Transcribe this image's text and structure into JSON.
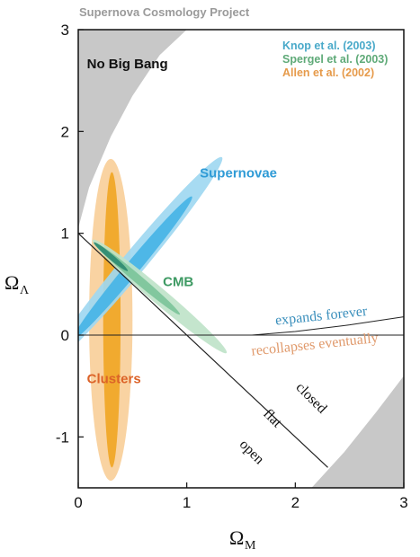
{
  "chart_data": {
    "type": "scatter",
    "title": "Supernova Cosmology Project",
    "xlabel": "Ω",
    "xlabel_sub": "M",
    "ylabel": "Ω",
    "ylabel_sub": "Λ",
    "xlim": [
      0,
      3
    ],
    "ylim": [
      -1.5,
      3
    ],
    "xticks": [
      {
        "value": 0,
        "label": "0"
      },
      {
        "value": 1,
        "label": "1"
      },
      {
        "value": 2,
        "label": "2"
      },
      {
        "value": 3,
        "label": "3"
      }
    ],
    "yticks": [
      {
        "value": 3,
        "label": "3"
      },
      {
        "value": 2,
        "label": "2"
      },
      {
        "value": 1,
        "label": "1"
      },
      {
        "value": 0,
        "label": "0"
      },
      {
        "value": -1,
        "label": "-1"
      }
    ],
    "legend": {
      "placement": "top-right",
      "entries": [
        {
          "label": "Knop et al. (2003)",
          "color": "#49a9c9"
        },
        {
          "label": "Spergel et al.  (2003)",
          "color": "#5faa78"
        },
        {
          "label": "Allen et al.  (2002)",
          "color": "#e69a4a"
        }
      ]
    },
    "excluded_regions": {
      "no_big_bang": {
        "label": "No Big Bang",
        "boundary": [
          [
            0,
            1.05
          ],
          [
            0.1,
            1.45
          ],
          [
            0.3,
            1.95
          ],
          [
            0.5,
            2.35
          ],
          [
            0.75,
            2.75
          ],
          [
            1.0,
            3.0
          ]
        ]
      },
      "lower_right": {
        "boundary": [
          [
            2.15,
            -1.5
          ],
          [
            2.45,
            -1.15
          ],
          [
            2.75,
            -0.75
          ],
          [
            3.0,
            -0.4
          ]
        ]
      }
    },
    "flat_line": {
      "label": "flat",
      "points": [
        [
          0,
          1
        ],
        [
          2.3,
          -1.3
        ]
      ]
    },
    "zero_line": {
      "y": 0
    },
    "expansion_boundary": {
      "points": [
        [
          1.6,
          0.0
        ],
        [
          2.0,
          0.035
        ],
        [
          2.5,
          0.1
        ],
        [
          3.0,
          0.18
        ]
      ]
    },
    "confidence_regions": [
      {
        "name": "Supernovae",
        "color_outer": "#9fd8f1",
        "color_inner": "#47b4e6",
        "outer": {
          "center": [
            0.53,
            0.73
          ],
          "semi_major": 1.29,
          "semi_minor": 0.11,
          "angle_deg": 52
        },
        "inner": {
          "center": [
            0.5,
            0.66
          ],
          "semi_major": 0.89,
          "semi_minor": 0.065,
          "angle_deg": 52
        }
      },
      {
        "name": "CMB",
        "color_outer": "#bfe3c9",
        "color_inner": "#7cc49a",
        "core_color": "#2f8a72",
        "outer": {
          "center": [
            0.75,
            0.38
          ],
          "semi_major": 0.83,
          "semi_minor": 0.075,
          "angle_deg": -42
        },
        "inner": {
          "center": [
            0.55,
            0.55
          ],
          "semi_major": 0.52,
          "semi_minor": 0.04,
          "angle_deg": -42
        },
        "core": {
          "center": [
            0.3,
            0.77
          ],
          "semi_major": 0.21,
          "semi_minor": 0.025,
          "angle_deg": -42
        }
      },
      {
        "name": "Clusters",
        "color_outer": "#f8cf9a",
        "color_inner": "#f0a625",
        "outer": {
          "center": [
            0.3,
            0.15
          ],
          "x_halfwidth": 0.2,
          "y_halfheight": 1.58,
          "angle_deg": 86
        },
        "inner": {
          "center": [
            0.31,
            0.15
          ],
          "x_halfwidth": 0.08,
          "y_halfheight": 1.45,
          "angle_deg": 86
        }
      }
    ],
    "annotations": [
      {
        "text": "Supernovae",
        "color": "#2f9bd6",
        "x": 1.12,
        "y": 1.55
      },
      {
        "text": "CMB",
        "color": "#3e9a63",
        "x": 0.78,
        "y": 0.48
      },
      {
        "text": "Clusters",
        "color": "#dc6328",
        "x": 0.08,
        "y": -0.47
      },
      {
        "text": "No Big Bang",
        "color": "#111111",
        "x": 0.08,
        "y": 2.62
      },
      {
        "text": "expands forever",
        "color": "#3a8fbc",
        "x": 1.82,
        "y": 0.1
      },
      {
        "text": "recollapses eventually",
        "color": "#e09a6c",
        "x": 1.6,
        "y": -0.2
      },
      {
        "text": "closed",
        "color": "#111111",
        "x": 2.0,
        "y": -0.52
      },
      {
        "text": "flat",
        "color": "#111111",
        "x": 1.7,
        "y": -0.78
      },
      {
        "text": "open",
        "color": "#111111",
        "x": 1.48,
        "y": -1.08
      }
    ]
  }
}
